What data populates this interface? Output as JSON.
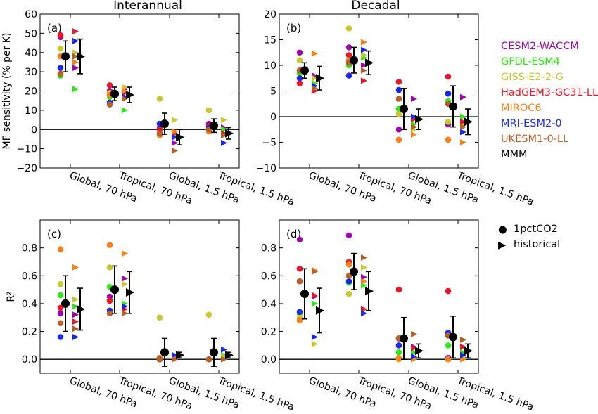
{
  "column_titles": [
    "Interannual",
    "Decadal"
  ],
  "legend": {
    "models": [
      {
        "name": "CESM2-WACCM",
        "color": "#9b0aa7"
      },
      {
        "name": "GFDL-ESM4",
        "color": "#33e61a"
      },
      {
        "name": "GISS-E2-2-G",
        "color": "#c8c832"
      },
      {
        "name": "HadGEM3-GC31-LL",
        "color": "#e6192a"
      },
      {
        "name": "MIROC6",
        "color": "#f5821e"
      },
      {
        "name": "MRI-ESM2-0",
        "color": "#1a28e6"
      },
      {
        "name": "UKESM1-0-LL",
        "color": "#b4602a"
      },
      {
        "name": "MMM",
        "color": "#000000"
      }
    ],
    "markers": [
      {
        "label": "1pctCO2",
        "shape": "circle"
      },
      {
        "label": "historical",
        "shape": "triangle-right"
      }
    ]
  },
  "chart_data": [
    {
      "panel": "(a)",
      "type": "scatter",
      "title": "Interannual",
      "ylabel": "MF sensitivity (% per K)",
      "ylim": [
        -20,
        60
      ],
      "yticks": [
        -20,
        -10,
        0,
        10,
        20,
        30,
        40,
        50,
        60
      ],
      "zero_line": true,
      "categories": [
        "Global, 70 hPa",
        "Tropical, 70 hPa",
        "Global, 1.5 hPa",
        "Tropical, 1.5 hPa"
      ],
      "model_order": [
        "CESM2-WACCM",
        "GFDL-ESM4",
        "GISS-E2-2-G",
        "HadGEM3-GC31-LL",
        "MIROC6",
        "MRI-ESM2-0",
        "UKESM1-0-LL"
      ],
      "onepctCO2": [
        [
          48,
          28,
          42,
          49,
          38,
          32,
          29
        ],
        [
          20,
          17,
          19,
          23,
          18,
          14,
          13
        ],
        [
          1,
          0,
          16,
          0,
          -3,
          3,
          -2
        ],
        [
          3,
          0,
          10,
          2,
          -1,
          1,
          0
        ]
      ],
      "historical": [
        [
          32,
          21,
          40,
          51,
          35,
          46,
          38
        ],
        [
          21,
          10,
          22,
          19,
          20,
          17,
          16
        ],
        [
          -7,
          -3,
          5,
          -2,
          -1,
          -4,
          -11
        ],
        [
          1,
          0,
          5,
          -2,
          -3,
          -7,
          -3
        ]
      ],
      "mmm_1pctCO2": [
        {
          "mean": 38,
          "err": 8
        },
        {
          "mean": 18.5,
          "err": 3.5
        },
        {
          "mean": 3,
          "err": 5.5
        },
        {
          "mean": 2,
          "err": 3.5
        }
      ],
      "mmm_historical": [
        {
          "mean": 38,
          "err": 9
        },
        {
          "mean": 18,
          "err": 4
        },
        {
          "mean": -4,
          "err": 4
        },
        {
          "mean": -2,
          "err": 3
        }
      ]
    },
    {
      "panel": "(b)",
      "type": "scatter",
      "title": "Decadal",
      "ylabel": "",
      "ylim": [
        -10,
        20
      ],
      "yticks": [
        -10,
        -5,
        0,
        5,
        10,
        15,
        20
      ],
      "zero_line": true,
      "categories": [
        "Global, 70 hPa",
        "Tropical, 70 hPa",
        "Global, 1.5 hPa",
        "Tropical, 1.5 hPa"
      ],
      "model_order": [
        "CESM2-WACCM",
        "GFDL-ESM4",
        "GISS-E2-2-G",
        "HadGEM3-GC31-LL",
        "MIROC6",
        "MRI-ESM2-0",
        "UKESM1-0-LL"
      ],
      "onepctCO2": [
        [
          12.5,
          8.5,
          11,
          6.5,
          9,
          7.5,
          9
        ],
        [
          13.5,
          10,
          17.2,
          12,
          11,
          8,
          10.5
        ],
        [
          -2.5,
          1.5,
          0.5,
          6.8,
          -4.5,
          5.2,
          3.5
        ],
        [
          -1.5,
          3,
          -1,
          7.8,
          -4.5,
          4.5,
          2.5
        ]
      ],
      "historical": [
        [
          8,
          6.5,
          7.5,
          5,
          12.3,
          6,
          5.5
        ],
        [
          10,
          11.5,
          12,
          7,
          14.5,
          13,
          9
        ],
        [
          3.5,
          -1.5,
          -2.5,
          -0.5,
          -3.5,
          0,
          -2
        ],
        [
          3.8,
          0,
          -1.5,
          -1,
          -5,
          -3,
          -2
        ]
      ],
      "mmm_1pctCO2": [
        {
          "mean": 9,
          "err": 1.5
        },
        {
          "mean": 11,
          "err": 2.5
        },
        {
          "mean": 1.5,
          "err": 4
        },
        {
          "mean": 2,
          "err": 4
        }
      ],
      "mmm_historical": [
        {
          "mean": 7.5,
          "err": 2.3
        },
        {
          "mean": 10.5,
          "err": 2.3
        },
        {
          "mean": -0.5,
          "err": 2
        },
        {
          "mean": -1,
          "err": 2.5
        }
      ]
    },
    {
      "panel": "(c)",
      "type": "scatter",
      "title": "",
      "ylabel": "R²",
      "ylim": [
        -0.1,
        1.0
      ],
      "yticks": [
        0.0,
        0.2,
        0.4,
        0.6,
        0.8
      ],
      "zero_line": true,
      "categories": [
        "Global, 70 hPa",
        "Tropical, 70 hPa",
        "Global, 1.5 hPa",
        "Tropical, 1.5 hPa"
      ],
      "model_order": [
        "CESM2-WACCM",
        "GFDL-ESM4",
        "GISS-E2-2-G",
        "HadGEM3-GC31-LL",
        "MIROC6",
        "MRI-ESM2-0",
        "UKESM1-0-LL"
      ],
      "onepctCO2": [
        [
          0.33,
          0.46,
          0.54,
          0.37,
          0.79,
          0.16,
          0.26
        ],
        [
          0.45,
          0.52,
          0.66,
          0.42,
          0.82,
          0.35,
          0.33
        ],
        [
          0.01,
          0.0,
          0.3,
          0.0,
          0.01,
          0.0,
          0.0
        ],
        [
          0.0,
          0.0,
          0.32,
          0.0,
          0.0,
          0.0,
          0.0
        ]
      ],
      "historical": [
        [
          0.32,
          0.38,
          0.43,
          0.27,
          0.66,
          0.16,
          0.22
        ],
        [
          0.58,
          0.4,
          0.54,
          0.36,
          0.76,
          0.38,
          0.33
        ],
        [
          0.02,
          0.03,
          0.01,
          0.0,
          0.01,
          0.03,
          0.0
        ],
        [
          0.01,
          0.03,
          0.02,
          0.0,
          0.0,
          0.07,
          0.0
        ]
      ],
      "mmm_1pctCO2": [
        {
          "mean": 0.4,
          "err": 0.2
        },
        {
          "mean": 0.5,
          "err": 0.17
        },
        {
          "mean": 0.05,
          "err": 0.1
        },
        {
          "mean": 0.05,
          "err": 0.1
        }
      ],
      "mmm_historical": [
        {
          "mean": 0.36,
          "err": 0.15
        },
        {
          "mean": 0.48,
          "err": 0.15
        },
        {
          "mean": 0.03,
          "err": 0.02
        },
        {
          "mean": 0.03,
          "err": 0.02
        }
      ]
    },
    {
      "panel": "(d)",
      "type": "scatter",
      "title": "",
      "ylabel": "",
      "ylim": [
        -0.1,
        1.0
      ],
      "yticks": [
        0.0,
        0.2,
        0.4,
        0.6,
        0.8
      ],
      "zero_line": true,
      "categories": [
        "Global, 70 hPa",
        "Tropical, 70 hPa",
        "Global, 1.5 hPa",
        "Tropical, 1.5 hPa"
      ],
      "model_order": [
        "CESM2-WACCM",
        "GFDL-ESM4",
        "GISS-E2-2-G",
        "HadGEM3-GC31-LL",
        "MIROC6",
        "MRI-ESM2-0",
        "UKESM1-0-LL"
      ],
      "onepctCO2": [
        [
          0.86,
          0.33,
          0.3,
          0.65,
          0.28,
          0.34,
          0.56
        ],
        [
          0.89,
          0.55,
          0.47,
          0.7,
          0.68,
          0.56,
          0.6
        ],
        [
          0.15,
          0.05,
          0.0,
          0.5,
          0.01,
          0.1,
          0.15
        ],
        [
          0.01,
          0.1,
          0.0,
          0.49,
          0.0,
          0.19,
          0.17
        ]
      ],
      "historical": [
        [
          0.45,
          0.4,
          0.11,
          0.46,
          0.64,
          0.16,
          0.63
        ],
        [
          0.59,
          0.53,
          0.66,
          0.36,
          0.56,
          0.33,
          0.73
        ],
        [
          0.09,
          0.05,
          0.01,
          0.08,
          0.0,
          0.02,
          0.18
        ],
        [
          0.09,
          0.05,
          0.02,
          0.09,
          0.0,
          0.03,
          0.14
        ]
      ],
      "mmm_1pctCO2": [
        {
          "mean": 0.47,
          "err": 0.18
        },
        {
          "mean": 0.63,
          "err": 0.13
        },
        {
          "mean": 0.15,
          "err": 0.15
        },
        {
          "mean": 0.16,
          "err": 0.15
        }
      ],
      "mmm_historical": [
        {
          "mean": 0.35,
          "err": 0.16
        },
        {
          "mean": 0.49,
          "err": 0.14
        },
        {
          "mean": 0.06,
          "err": 0.05
        },
        {
          "mean": 0.06,
          "err": 0.05
        }
      ]
    }
  ]
}
